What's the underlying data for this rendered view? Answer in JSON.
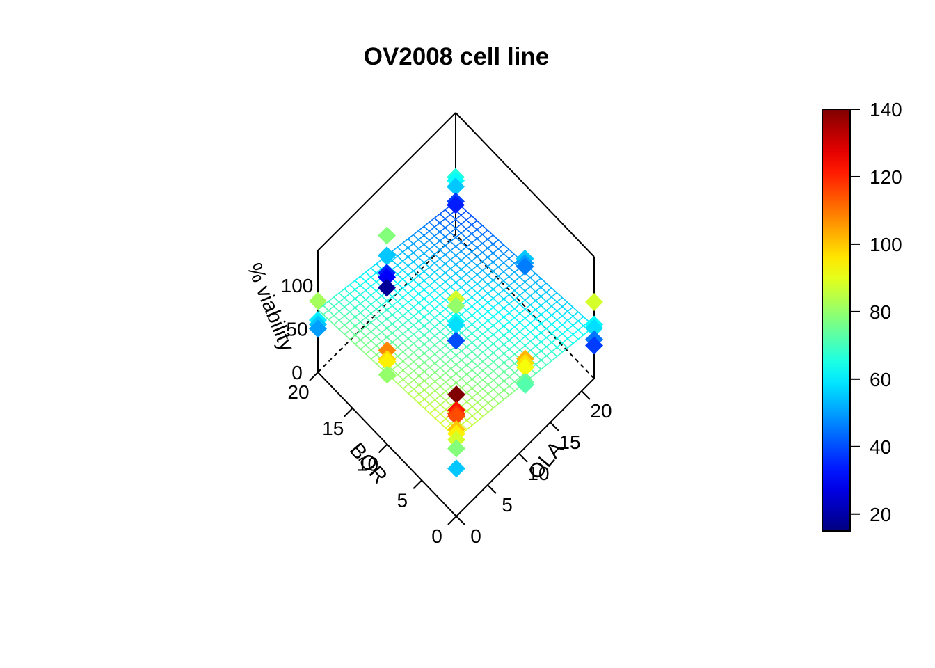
{
  "chart_data": {
    "type": "scatter3d",
    "title": "OV2008 cell line",
    "axes": {
      "x": {
        "label": "BOR",
        "range": [
          0,
          20
        ],
        "ticks": [
          "0",
          "5",
          "10",
          "15",
          "20"
        ]
      },
      "y": {
        "label": "OLA",
        "range": [
          0,
          22
        ],
        "ticks": [
          "0",
          "5",
          "10",
          "15",
          "20"
        ]
      },
      "z": {
        "label": "% viability",
        "range": [
          0,
          140
        ],
        "ticks": [
          "0",
          "50",
          "100"
        ]
      }
    },
    "surface": {
      "type": "regression-plane",
      "corners": {
        "x0_y0": 90,
        "x20_y0": 72,
        "x0_y22": 60,
        "x20_y22": 38
      }
    },
    "colorbar": {
      "min": 15,
      "max": 140,
      "ticks": [
        "20",
        "40",
        "60",
        "80",
        "100",
        "120",
        "140"
      ],
      "palette": "jet"
    },
    "points": [
      {
        "x": 0,
        "y": 0,
        "z": 140
      },
      {
        "x": 0,
        "y": 0,
        "z": 122
      },
      {
        "x": 0,
        "y": 0,
        "z": 118
      },
      {
        "x": 0,
        "y": 0,
        "z": 115
      },
      {
        "x": 0,
        "y": 0,
        "z": 100
      },
      {
        "x": 0,
        "y": 0,
        "z": 95
      },
      {
        "x": 0,
        "y": 0,
        "z": 88
      },
      {
        "x": 0,
        "y": 0,
        "z": 78
      },
      {
        "x": 0,
        "y": 0,
        "z": 55
      },
      {
        "x": 0,
        "y": 11,
        "z": 102
      },
      {
        "x": 0,
        "y": 11,
        "z": 97
      },
      {
        "x": 0,
        "y": 11,
        "z": 92
      },
      {
        "x": 0,
        "y": 11,
        "z": 75
      },
      {
        "x": 0,
        "y": 11,
        "z": 72
      },
      {
        "x": 0,
        "y": 22,
        "z": 88
      },
      {
        "x": 0,
        "y": 22,
        "z": 62
      },
      {
        "x": 0,
        "y": 22,
        "z": 58
      },
      {
        "x": 0,
        "y": 22,
        "z": 45
      },
      {
        "x": 0,
        "y": 22,
        "z": 38
      },
      {
        "x": 10,
        "y": 0,
        "z": 108
      },
      {
        "x": 10,
        "y": 0,
        "z": 98
      },
      {
        "x": 10,
        "y": 0,
        "z": 95
      },
      {
        "x": 10,
        "y": 0,
        "z": 80
      },
      {
        "x": 10,
        "y": 11,
        "z": 88
      },
      {
        "x": 10,
        "y": 11,
        "z": 80
      },
      {
        "x": 10,
        "y": 11,
        "z": 62
      },
      {
        "x": 10,
        "y": 11,
        "z": 58
      },
      {
        "x": 10,
        "y": 11,
        "z": 40
      },
      {
        "x": 10,
        "y": 22,
        "z": 55
      },
      {
        "x": 10,
        "y": 22,
        "z": 50
      },
      {
        "x": 10,
        "y": 22,
        "z": 46
      },
      {
        "x": 20,
        "y": 0,
        "z": 82
      },
      {
        "x": 20,
        "y": 0,
        "z": 60
      },
      {
        "x": 20,
        "y": 0,
        "z": 55
      },
      {
        "x": 20,
        "y": 0,
        "z": 50
      },
      {
        "x": 20,
        "y": 11,
        "z": 78
      },
      {
        "x": 20,
        "y": 11,
        "z": 55
      },
      {
        "x": 20,
        "y": 11,
        "z": 35
      },
      {
        "x": 20,
        "y": 11,
        "z": 30
      },
      {
        "x": 20,
        "y": 11,
        "z": 18
      },
      {
        "x": 20,
        "y": 22,
        "z": 66
      },
      {
        "x": 20,
        "y": 22,
        "z": 62
      },
      {
        "x": 20,
        "y": 22,
        "z": 55
      },
      {
        "x": 20,
        "y": 22,
        "z": 38
      },
      {
        "x": 20,
        "y": 22,
        "z": 34
      }
    ]
  }
}
